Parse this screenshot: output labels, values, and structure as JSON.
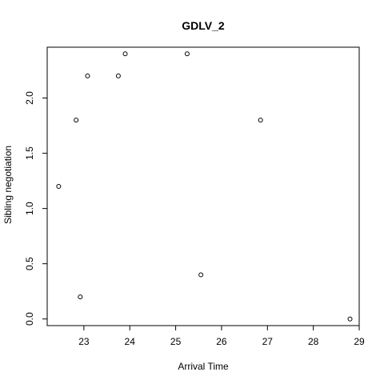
{
  "chart_data": {
    "type": "scatter",
    "title": "GDLV_2",
    "xlabel": "Arrival Time",
    "ylabel": "Sibling negotiation",
    "xlim": [
      22.2,
      29.0
    ],
    "ylim": [
      -0.06,
      2.46
    ],
    "xticks": [
      "23",
      "24",
      "25",
      "26",
      "27",
      "28",
      "29"
    ],
    "yticks": [
      "0.0",
      "0.5",
      "1.0",
      "1.5",
      "2.0"
    ],
    "grid": false,
    "points": [
      {
        "x": 22.45,
        "y": 1.2
      },
      {
        "x": 22.83,
        "y": 1.8
      },
      {
        "x": 22.92,
        "y": 0.2
      },
      {
        "x": 23.08,
        "y": 2.2
      },
      {
        "x": 23.75,
        "y": 2.2
      },
      {
        "x": 23.9,
        "y": 2.4
      },
      {
        "x": 25.25,
        "y": 2.4
      },
      {
        "x": 25.55,
        "y": 0.4
      },
      {
        "x": 26.85,
        "y": 1.8
      },
      {
        "x": 28.8,
        "y": 0.0
      }
    ]
  }
}
